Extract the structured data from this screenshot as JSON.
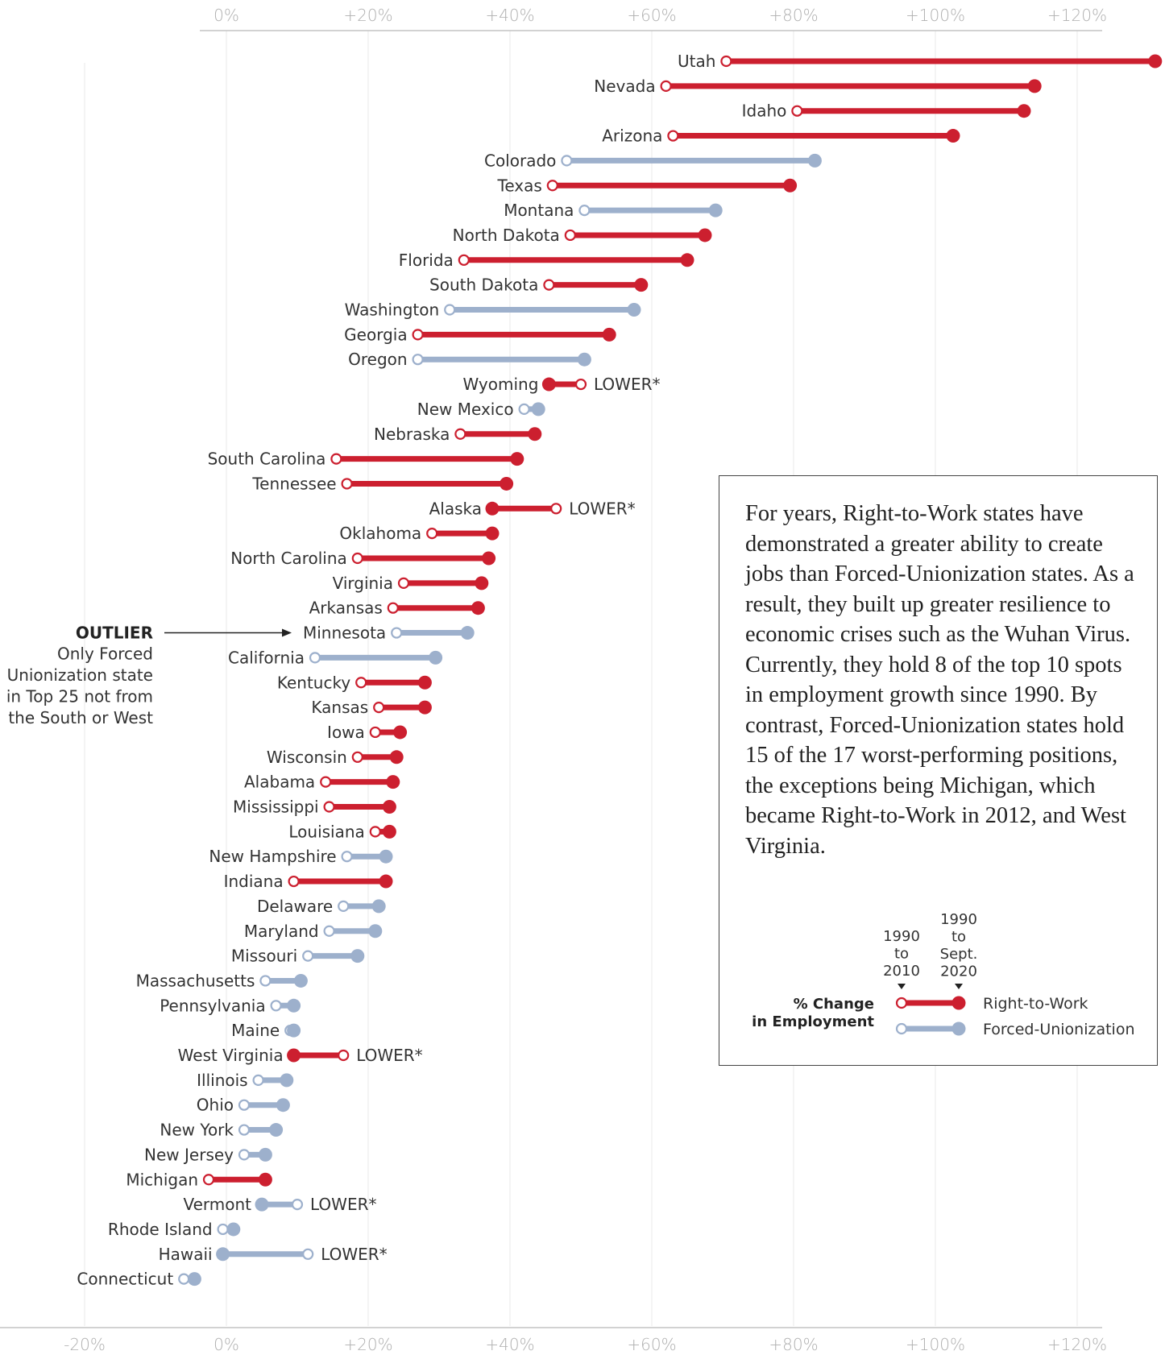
{
  "chart_data": {
    "type": "dumbbell",
    "x_unit": "% change in employment",
    "xlim": [
      -22,
      132
    ],
    "top_ticks": [
      "0%",
      "+20%",
      "+40%",
      "+60%",
      "+80%",
      "+100%",
      "+120%"
    ],
    "bottom_ticks": [
      "-20%",
      "0%",
      "+20%",
      "+40%",
      "+60%",
      "+80%",
      "+100%",
      "+120%"
    ],
    "top_tick_values": [
      0,
      20,
      40,
      60,
      80,
      100,
      120
    ],
    "bottom_tick_values": [
      -20,
      0,
      20,
      40,
      60,
      80,
      100,
      120
    ],
    "grid": true,
    "colors": {
      "right_to_work": "#cc1f2f",
      "forced_unionization": "#9db0cc"
    },
    "lower_label": "LOWER*",
    "states": [
      {
        "name": "Utah",
        "group": "rtw",
        "v2010": 70.5,
        "v2020": 131
      },
      {
        "name": "Nevada",
        "group": "rtw",
        "v2010": 62,
        "v2020": 114
      },
      {
        "name": "Idaho",
        "group": "rtw",
        "v2010": 80.5,
        "v2020": 112.5
      },
      {
        "name": "Arizona",
        "group": "rtw",
        "v2010": 63,
        "v2020": 102.5
      },
      {
        "name": "Colorado",
        "group": "fu",
        "v2010": 48,
        "v2020": 83
      },
      {
        "name": "Texas",
        "group": "rtw",
        "v2010": 46,
        "v2020": 79.5
      },
      {
        "name": "Montana",
        "group": "fu",
        "v2010": 50.5,
        "v2020": 69
      },
      {
        "name": "North Dakota",
        "group": "rtw",
        "v2010": 48.5,
        "v2020": 67.5
      },
      {
        "name": "Florida",
        "group": "rtw",
        "v2010": 33.5,
        "v2020": 65
      },
      {
        "name": "South Dakota",
        "group": "rtw",
        "v2010": 45.5,
        "v2020": 58.5
      },
      {
        "name": "Washington",
        "group": "fu",
        "v2010": 31.5,
        "v2020": 57.5
      },
      {
        "name": "Georgia",
        "group": "rtw",
        "v2010": 27,
        "v2020": 54
      },
      {
        "name": "Oregon",
        "group": "fu",
        "v2010": 27,
        "v2020": 50.5
      },
      {
        "name": "Wyoming",
        "group": "rtw",
        "v2010": 50,
        "v2020": 45.5,
        "lower": true
      },
      {
        "name": "New Mexico",
        "group": "fu",
        "v2010": 42,
        "v2020": 44
      },
      {
        "name": "Nebraska",
        "group": "rtw",
        "v2010": 33,
        "v2020": 43.5
      },
      {
        "name": "South Carolina",
        "group": "rtw",
        "v2010": 15.5,
        "v2020": 41
      },
      {
        "name": "Tennessee",
        "group": "rtw",
        "v2010": 17,
        "v2020": 39.5
      },
      {
        "name": "Alaska",
        "group": "rtw",
        "v2010": 46.5,
        "v2020": 37.5,
        "lower": true
      },
      {
        "name": "Oklahoma",
        "group": "rtw",
        "v2010": 29,
        "v2020": 37.5
      },
      {
        "name": "North Carolina",
        "group": "rtw",
        "v2010": 18.5,
        "v2020": 37
      },
      {
        "name": "Virginia",
        "group": "rtw",
        "v2010": 25,
        "v2020": 36
      },
      {
        "name": "Arkansas",
        "group": "rtw",
        "v2010": 23.5,
        "v2020": 35.5
      },
      {
        "name": "Minnesota",
        "group": "fu",
        "v2010": 24,
        "v2020": 34
      },
      {
        "name": "California",
        "group": "fu",
        "v2010": 12.5,
        "v2020": 29.5
      },
      {
        "name": "Kentucky",
        "group": "rtw",
        "v2010": 19,
        "v2020": 28
      },
      {
        "name": "Kansas",
        "group": "rtw",
        "v2010": 21.5,
        "v2020": 28
      },
      {
        "name": "Iowa",
        "group": "rtw",
        "v2010": 21,
        "v2020": 24.5
      },
      {
        "name": "Wisconsin",
        "group": "rtw",
        "v2010": 18.5,
        "v2020": 24
      },
      {
        "name": "Alabama",
        "group": "rtw",
        "v2010": 14,
        "v2020": 23.5
      },
      {
        "name": "Mississippi",
        "group": "rtw",
        "v2010": 14.5,
        "v2020": 23
      },
      {
        "name": "Louisiana",
        "group": "rtw",
        "v2010": 21,
        "v2020": 23
      },
      {
        "name": "New Hampshire",
        "group": "fu",
        "v2010": 17,
        "v2020": 22.5
      },
      {
        "name": "Indiana",
        "group": "rtw",
        "v2010": 9.5,
        "v2020": 22.5
      },
      {
        "name": "Delaware",
        "group": "fu",
        "v2010": 16.5,
        "v2020": 21.5
      },
      {
        "name": "Maryland",
        "group": "fu",
        "v2010": 14.5,
        "v2020": 21
      },
      {
        "name": "Missouri",
        "group": "fu",
        "v2010": 11.5,
        "v2020": 18.5
      },
      {
        "name": "Massachusetts",
        "group": "fu",
        "v2010": 5.5,
        "v2020": 10.5
      },
      {
        "name": "Pennsylvania",
        "group": "fu",
        "v2010": 7,
        "v2020": 9.5
      },
      {
        "name": "Maine",
        "group": "fu",
        "v2010": 9,
        "v2020": 9.5
      },
      {
        "name": "West Virginia",
        "group": "rtw",
        "v2010": 16.5,
        "v2020": 9.5,
        "lower": true
      },
      {
        "name": "Illinois",
        "group": "fu",
        "v2010": 4.5,
        "v2020": 8.5
      },
      {
        "name": "Ohio",
        "group": "fu",
        "v2010": 2.5,
        "v2020": 8
      },
      {
        "name": "New York",
        "group": "fu",
        "v2010": 2.5,
        "v2020": 7
      },
      {
        "name": "New Jersey",
        "group": "fu",
        "v2010": 2.5,
        "v2020": 5.5
      },
      {
        "name": "Michigan",
        "group": "rtw",
        "v2010": -2.5,
        "v2020": 5.5
      },
      {
        "name": "Vermont",
        "group": "fu",
        "v2010": 10,
        "v2020": 5,
        "lower": true
      },
      {
        "name": "Rhode Island",
        "group": "fu",
        "v2010": -0.5,
        "v2020": 1
      },
      {
        "name": "Hawaii",
        "group": "fu",
        "v2010": 11.5,
        "v2020": -0.5,
        "lower": true
      },
      {
        "name": "Connecticut",
        "group": "fu",
        "v2010": -6,
        "v2020": -4.5
      }
    ],
    "outlier": {
      "title": "OUTLIER",
      "lines": [
        "Only Forced",
        "Unionization state",
        "in Top 25 not from",
        "the South or West"
      ]
    }
  },
  "callout_text": "For years, Right-to-Work states have demonstrated a greater ability to create jobs than Forced-Unionization states. As a result, they built up greater resilience to economic crises such as the Wuhan Virus. Currently, they hold 8 of the top 10 spots in employment growth since 1990. By contrast, Forced-Unionization states hold 15 of the 17 worst-performing positions, the exceptions being Michigan, which became Right-to-Work in 2012, and West Virginia.",
  "legend": {
    "title_line1": "% Change",
    "title_line2": "in Employment",
    "col1": [
      "1990",
      "to",
      "2010"
    ],
    "col2": [
      "1990",
      "to",
      "Sept.",
      "2020"
    ],
    "rtw_label": "Right-to-Work",
    "fu_label": "Forced-Unionization"
  }
}
